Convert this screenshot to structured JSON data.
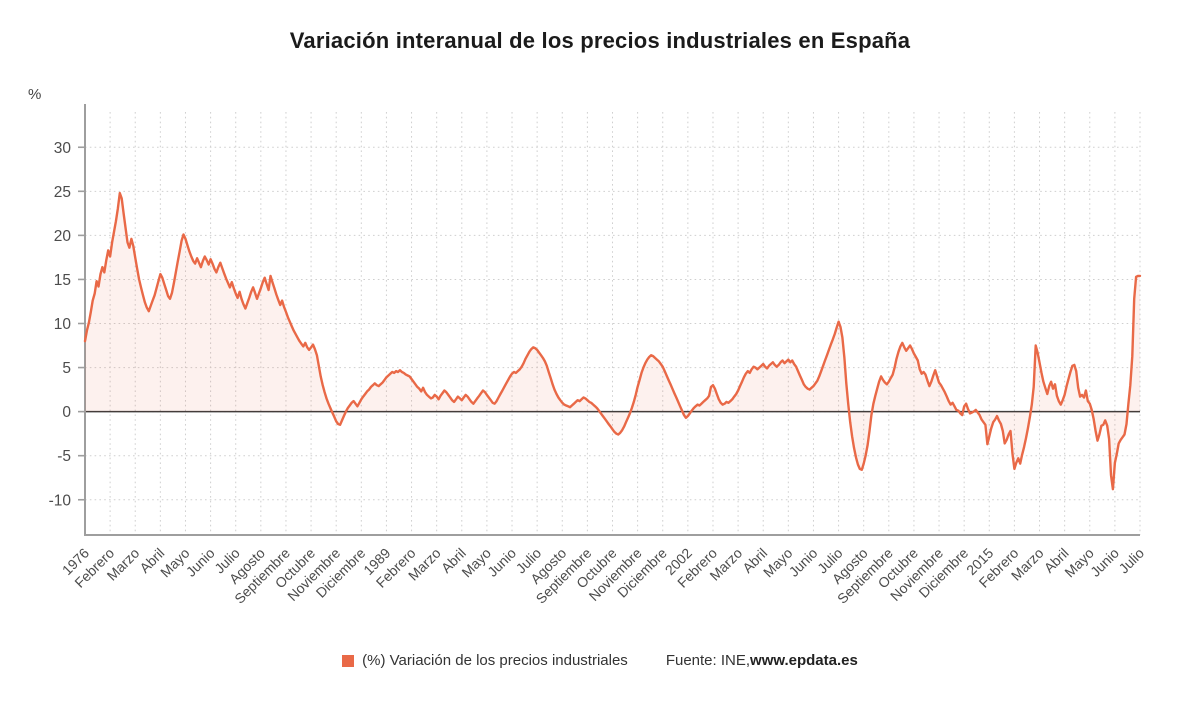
{
  "title": "Variación interanual de los precios industriales en España",
  "y_axis_unit": "%",
  "legend": {
    "marker_color": "#e96947",
    "label": "(%) Variación de los precios industriales"
  },
  "source": {
    "prefix": "Fuente: INE, ",
    "site": "www.epdata.es"
  },
  "chart_data": {
    "type": "area",
    "title": "Variación interanual de los precios industriales en España",
    "xlabel": "",
    "ylabel": "%",
    "ylim": [
      -14,
      34
    ],
    "y_ticks": [
      30,
      25,
      20,
      15,
      10,
      5,
      0,
      -5,
      -10
    ],
    "grid": "dotted",
    "legend_position": "bottom",
    "x_unit": "month",
    "x_range": [
      "1976-01",
      "2021-07"
    ],
    "x_tick_step_months": 13,
    "x_tick_labels": [
      "1976",
      "Febrero",
      "Marzo",
      "Abril",
      "Mayo",
      "Junio",
      "Julio",
      "Agosto",
      "Septiembre",
      "Octubre",
      "Noviembre",
      "Diciembre",
      "1989",
      "Febrero",
      "Marzo",
      "Abril",
      "Mayo",
      "Junio",
      "Julio",
      "Agosto",
      "Septiembre",
      "Octubre",
      "Noviembre",
      "Diciembre",
      "2002",
      "Febrero",
      "Marzo",
      "Abril",
      "Mayo",
      "Junio",
      "Julio",
      "Agosto",
      "Septiembre",
      "Octubre",
      "Noviembre",
      "Diciembre",
      "2015",
      "Febrero",
      "Marzo",
      "Abril",
      "Mayo",
      "Junio",
      "Julio"
    ],
    "series": [
      {
        "name": "(%) Variación de los precios industriales",
        "color": "#e96947",
        "fill_color": "rgba(233,105,71,0.09)",
        "values": [
          8.0,
          9.2,
          10.1,
          11.3,
          12.6,
          13.4,
          14.8,
          14.2,
          15.6,
          16.4,
          15.8,
          17.2,
          18.3,
          17.6,
          19.2,
          20.4,
          21.6,
          23.0,
          24.8,
          24.2,
          22.5,
          20.8,
          19.2,
          18.6,
          19.6,
          18.8,
          17.5,
          16.2,
          15.0,
          14.1,
          13.2,
          12.4,
          11.8,
          11.4,
          12.0,
          12.6,
          13.2,
          14.0,
          14.8,
          15.6,
          15.2,
          14.5,
          13.8,
          13.1,
          12.8,
          13.5,
          14.6,
          15.8,
          17.0,
          18.2,
          19.4,
          20.1,
          19.6,
          18.9,
          18.2,
          17.6,
          17.1,
          16.8,
          17.4,
          16.9,
          16.4,
          17.1,
          17.6,
          17.2,
          16.7,
          17.3,
          16.8,
          16.2,
          15.8,
          16.4,
          16.9,
          16.3,
          15.7,
          15.1,
          14.6,
          14.1,
          14.7,
          14.0,
          13.4,
          12.9,
          13.6,
          12.8,
          12.2,
          11.7,
          12.3,
          12.9,
          13.6,
          14.1,
          13.5,
          12.8,
          13.4,
          14.0,
          14.7,
          15.2,
          14.5,
          13.8,
          15.4,
          14.7,
          14.0,
          13.3,
          12.7,
          12.1,
          12.6,
          11.9,
          11.3,
          10.7,
          10.2,
          9.7,
          9.2,
          8.8,
          8.4,
          8.0,
          7.7,
          7.4,
          7.8,
          7.3,
          7.0,
          7.3,
          7.6,
          7.1,
          6.4,
          5.2,
          4.0,
          3.0,
          2.2,
          1.5,
          0.9,
          0.4,
          -0.1,
          -0.6,
          -1.1,
          -1.4,
          -1.5,
          -1.0,
          -0.5,
          0.0,
          0.4,
          0.7,
          1.0,
          1.2,
          0.9,
          0.6,
          1.0,
          1.4,
          1.7,
          2.0,
          2.3,
          2.5,
          2.8,
          3.0,
          3.2,
          3.0,
          2.9,
          3.1,
          3.3,
          3.6,
          3.9,
          4.1,
          4.3,
          4.5,
          4.4,
          4.6,
          4.5,
          4.7,
          4.5,
          4.4,
          4.2,
          4.1,
          4.0,
          3.7,
          3.4,
          3.1,
          2.8,
          2.6,
          2.3,
          2.7,
          2.2,
          1.9,
          1.7,
          1.5,
          1.6,
          1.9,
          1.7,
          1.4,
          1.8,
          2.1,
          2.4,
          2.2,
          1.9,
          1.6,
          1.3,
          1.1,
          1.4,
          1.7,
          1.5,
          1.3,
          1.6,
          1.9,
          1.7,
          1.4,
          1.1,
          0.9,
          1.2,
          1.5,
          1.8,
          2.1,
          2.4,
          2.2,
          1.9,
          1.6,
          1.3,
          1.0,
          0.9,
          1.2,
          1.6,
          2.0,
          2.4,
          2.8,
          3.2,
          3.6,
          4.0,
          4.3,
          4.5,
          4.4,
          4.6,
          4.8,
          5.1,
          5.5,
          6.0,
          6.4,
          6.8,
          7.1,
          7.3,
          7.2,
          7.0,
          6.7,
          6.4,
          6.1,
          5.7,
          5.2,
          4.5,
          3.8,
          3.1,
          2.5,
          2.0,
          1.6,
          1.3,
          1.0,
          0.8,
          0.7,
          0.6,
          0.5,
          0.7,
          0.9,
          1.1,
          1.3,
          1.2,
          1.4,
          1.6,
          1.5,
          1.3,
          1.1,
          1.0,
          0.8,
          0.6,
          0.4,
          0.1,
          -0.2,
          -0.5,
          -0.8,
          -1.1,
          -1.4,
          -1.7,
          -2.0,
          -2.3,
          -2.5,
          -2.6,
          -2.4,
          -2.1,
          -1.7,
          -1.2,
          -0.7,
          -0.2,
          0.4,
          1.1,
          1.9,
          2.8,
          3.6,
          4.4,
          5.0,
          5.5,
          5.9,
          6.2,
          6.4,
          6.3,
          6.1,
          5.9,
          5.7,
          5.4,
          5.1,
          4.6,
          4.1,
          3.6,
          3.1,
          2.6,
          2.1,
          1.6,
          1.1,
          0.6,
          0.1,
          -0.4,
          -0.7,
          -0.5,
          -0.2,
          0.1,
          0.4,
          0.6,
          0.8,
          0.7,
          0.9,
          1.1,
          1.3,
          1.5,
          1.8,
          2.8,
          3.0,
          2.6,
          2.0,
          1.4,
          1.0,
          0.8,
          0.9,
          1.1,
          1.0,
          1.2,
          1.4,
          1.7,
          2.0,
          2.4,
          2.9,
          3.4,
          3.9,
          4.3,
          4.6,
          4.4,
          4.8,
          5.1,
          5.0,
          4.8,
          5.0,
          5.2,
          5.4,
          5.1,
          4.9,
          5.2,
          5.4,
          5.6,
          5.3,
          5.1,
          5.3,
          5.6,
          5.8,
          5.5,
          5.7,
          5.9,
          5.6,
          5.8,
          5.4,
          5.1,
          4.6,
          4.1,
          3.6,
          3.1,
          2.8,
          2.6,
          2.5,
          2.7,
          2.9,
          3.2,
          3.5,
          4.0,
          4.6,
          5.2,
          5.8,
          6.4,
          7.0,
          7.6,
          8.2,
          8.8,
          9.5,
          10.2,
          9.6,
          8.4,
          6.1,
          3.2,
          0.9,
          -1.2,
          -2.8,
          -4.1,
          -5.2,
          -6.0,
          -6.5,
          -6.6,
          -5.9,
          -5.0,
          -3.8,
          -2.2,
          -0.4,
          0.9,
          1.8,
          2.6,
          3.4,
          4.0,
          3.6,
          3.3,
          3.1,
          3.4,
          3.8,
          4.2,
          5.0,
          6.0,
          6.8,
          7.4,
          7.8,
          7.3,
          6.9,
          7.2,
          7.5,
          7.1,
          6.6,
          6.2,
          5.8,
          4.8,
          4.3,
          4.5,
          4.2,
          3.5,
          2.9,
          3.4,
          4.1,
          4.7,
          4.0,
          3.3,
          3.0,
          2.6,
          2.2,
          1.7,
          1.2,
          0.8,
          1.0,
          0.6,
          0.2,
          0.1,
          -0.2,
          -0.4,
          0.6,
          0.9,
          0.3,
          -0.2,
          -0.1,
          0.0,
          0.2,
          -0.1,
          -0.4,
          -0.9,
          -1.2,
          -1.5,
          -3.7,
          -2.8,
          -1.9,
          -1.2,
          -0.9,
          -0.5,
          -1.0,
          -1.4,
          -2.2,
          -3.6,
          -3.2,
          -2.6,
          -2.2,
          -4.8,
          -6.5,
          -5.8,
          -5.3,
          -5.9,
          -4.9,
          -4.0,
          -3.0,
          -1.9,
          -0.6,
          0.8,
          2.8,
          7.5,
          6.7,
          5.6,
          4.4,
          3.4,
          2.7,
          2.0,
          2.9,
          3.4,
          2.6,
          3.1,
          1.8,
          1.2,
          0.8,
          1.3,
          1.9,
          2.9,
          3.7,
          4.5,
          5.2,
          5.3,
          4.6,
          2.7,
          1.7,
          1.9,
          1.6,
          2.4,
          1.2,
          0.9,
          0.2,
          -0.8,
          -2.2,
          -3.3,
          -2.6,
          -1.6,
          -1.5,
          -1.0,
          -1.6,
          -3.1,
          -7.2,
          -8.8,
          -5.8,
          -4.8,
          -3.6,
          -3.2,
          -2.9,
          -2.6,
          -1.4,
          0.9,
          3.0,
          6.3,
          12.8,
          15.3,
          15.4,
          15.4
        ]
      }
    ]
  }
}
